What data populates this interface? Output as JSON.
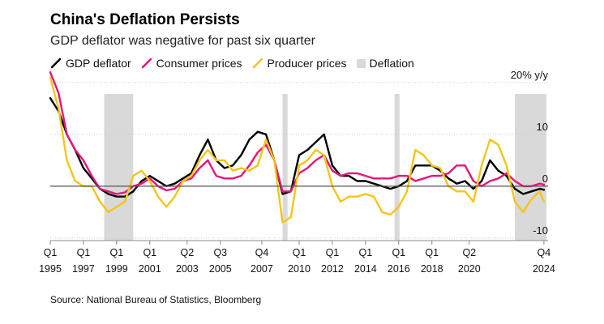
{
  "title": "China's Deflation Persists",
  "subtitle": "GDP deflator was negative for past six quarter",
  "source": "Source: National Bureau of Statistics, Bloomberg",
  "legend": [
    {
      "label": "GDP deflator",
      "color": "#000000",
      "kind": "line"
    },
    {
      "label": "Consumer prices",
      "color": "#e5157a",
      "kind": "line"
    },
    {
      "label": "Producer prices",
      "color": "#f5c518",
      "kind": "line"
    },
    {
      "label": "Deflation",
      "color": "#d9d9d9",
      "kind": "box"
    }
  ],
  "chart_data": {
    "type": "line",
    "x_unit": "year",
    "xlim": [
      1995,
      2025
    ],
    "ylim": [
      -10.5,
      20
    ],
    "y_unit_label": "20% y/y",
    "yticks": [
      {
        "value": 20,
        "label": "20% y/y"
      },
      {
        "value": 10,
        "label": "10"
      },
      {
        "value": 0,
        "label": "0"
      },
      {
        "value": -10,
        "label": "-10"
      }
    ],
    "xticks": [
      {
        "value": 1995,
        "q": "Q1",
        "year": "1995"
      },
      {
        "value": 1997,
        "q": "Q1",
        "year": "1997"
      },
      {
        "value": 1999,
        "q": "Q1",
        "year": "1999"
      },
      {
        "value": 2001,
        "q": "Q1",
        "year": "2001"
      },
      {
        "value": 2003.25,
        "q": "Q2",
        "year": "2003"
      },
      {
        "value": 2005.25,
        "q": "Q3",
        "year": "2005"
      },
      {
        "value": 2007.75,
        "q": "Q4",
        "year": "2007"
      },
      {
        "value": 2010,
        "q": "Q1",
        "year": "2010"
      },
      {
        "value": 2012,
        "q": "Q1",
        "year": "2012"
      },
      {
        "value": 2014,
        "q": "Q1",
        "year": "2014"
      },
      {
        "value": 2016,
        "q": "Q1",
        "year": "2016"
      },
      {
        "value": 2018,
        "q": "Q1",
        "year": "2018"
      },
      {
        "value": 2020.25,
        "q": "Q2",
        "year": "2020"
      },
      {
        "value": 2024.75,
        "q": "Q4",
        "year": "2024"
      }
    ],
    "deflation_periods": [
      [
        1998.25,
        2000.0
      ],
      [
        2009.0,
        2009.3
      ],
      [
        2015.75,
        2016.05
      ],
      [
        2023.0,
        2024.9
      ]
    ],
    "grid": true,
    "series": [
      {
        "name": "GDP deflator",
        "color": "#000000",
        "points": [
          [
            1995,
            17
          ],
          [
            1995.5,
            14.5
          ],
          [
            1996,
            10
          ],
          [
            1996.5,
            7
          ],
          [
            1997,
            3.5
          ],
          [
            1997.5,
            1.5
          ],
          [
            1998,
            -0.5
          ],
          [
            1998.5,
            -1.5
          ],
          [
            1999,
            -2
          ],
          [
            1999.5,
            -2
          ],
          [
            2000,
            -1
          ],
          [
            2000.5,
            1
          ],
          [
            2001,
            2
          ],
          [
            2001.5,
            1
          ],
          [
            2002,
            0
          ],
          [
            2002.5,
            0.5
          ],
          [
            2003,
            1.5
          ],
          [
            2003.5,
            2.5
          ],
          [
            2004,
            6
          ],
          [
            2004.5,
            9
          ],
          [
            2005,
            5
          ],
          [
            2005.5,
            3.5
          ],
          [
            2006,
            4
          ],
          [
            2006.5,
            6
          ],
          [
            2007,
            9
          ],
          [
            2007.5,
            10.5
          ],
          [
            2008,
            10
          ],
          [
            2008.5,
            5
          ],
          [
            2009,
            -1.5
          ],
          [
            2009.5,
            -1
          ],
          [
            2010,
            6
          ],
          [
            2010.5,
            7
          ],
          [
            2011,
            8.5
          ],
          [
            2011.5,
            10
          ],
          [
            2012,
            4
          ],
          [
            2012.5,
            2
          ],
          [
            2013,
            2
          ],
          [
            2013.5,
            1
          ],
          [
            2014,
            1
          ],
          [
            2014.5,
            0.5
          ],
          [
            2015,
            0
          ],
          [
            2015.5,
            -0.5
          ],
          [
            2016,
            0
          ],
          [
            2016.5,
            1
          ],
          [
            2017,
            4
          ],
          [
            2017.5,
            4
          ],
          [
            2018,
            4
          ],
          [
            2018.5,
            3
          ],
          [
            2019,
            1.5
          ],
          [
            2019.5,
            0.5
          ],
          [
            2020,
            1
          ],
          [
            2020.5,
            -0.5
          ],
          [
            2021,
            1
          ],
          [
            2021.5,
            5
          ],
          [
            2022,
            3
          ],
          [
            2022.5,
            2
          ],
          [
            2023,
            -0.5
          ],
          [
            2023.5,
            -1.5
          ],
          [
            2024,
            -1
          ],
          [
            2024.5,
            -0.5
          ],
          [
            2024.75,
            -0.7
          ]
        ]
      },
      {
        "name": "Consumer prices",
        "color": "#e5157a",
        "points": [
          [
            1995,
            22
          ],
          [
            1995.5,
            18
          ],
          [
            1996,
            10
          ],
          [
            1996.5,
            7
          ],
          [
            1997,
            5
          ],
          [
            1997.5,
            2
          ],
          [
            1998,
            -0.5
          ],
          [
            1998.5,
            -1
          ],
          [
            1999,
            -1.5
          ],
          [
            1999.5,
            -1.2
          ],
          [
            2000,
            0
          ],
          [
            2000.5,
            0.5
          ],
          [
            2001,
            1.5
          ],
          [
            2001.5,
            0
          ],
          [
            2002,
            -0.8
          ],
          [
            2002.5,
            -0.5
          ],
          [
            2003,
            1
          ],
          [
            2003.5,
            1.5
          ],
          [
            2004,
            3.5
          ],
          [
            2004.5,
            5
          ],
          [
            2005,
            2
          ],
          [
            2005.5,
            1.5
          ],
          [
            2006,
            1.5
          ],
          [
            2006.5,
            2
          ],
          [
            2007,
            4
          ],
          [
            2007.5,
            6.5
          ],
          [
            2008,
            8
          ],
          [
            2008.5,
            5
          ],
          [
            2009,
            -1
          ],
          [
            2009.5,
            -1
          ],
          [
            2010,
            2.5
          ],
          [
            2010.5,
            3.5
          ],
          [
            2011,
            5
          ],
          [
            2011.5,
            6
          ],
          [
            2012,
            3
          ],
          [
            2012.5,
            2
          ],
          [
            2013,
            2.5
          ],
          [
            2013.5,
            2.5
          ],
          [
            2014,
            2
          ],
          [
            2014.5,
            1.5
          ],
          [
            2015,
            1.5
          ],
          [
            2015.5,
            1.5
          ],
          [
            2016,
            2
          ],
          [
            2016.5,
            2
          ],
          [
            2017,
            1
          ],
          [
            2017.5,
            1.5
          ],
          [
            2018,
            2
          ],
          [
            2018.5,
            2
          ],
          [
            2019,
            2.5
          ],
          [
            2019.5,
            4
          ],
          [
            2020,
            4
          ],
          [
            2020.5,
            1
          ],
          [
            2021,
            0
          ],
          [
            2021.5,
            1
          ],
          [
            2022,
            1.5
          ],
          [
            2022.5,
            2.5
          ],
          [
            2023,
            1
          ],
          [
            2023.5,
            0
          ],
          [
            2024,
            0
          ],
          [
            2024.5,
            0.5
          ],
          [
            2024.75,
            0.3
          ]
        ]
      },
      {
        "name": "Producer prices",
        "color": "#f5c518",
        "points": [
          [
            1995,
            21
          ],
          [
            1995.5,
            15
          ],
          [
            1996,
            5
          ],
          [
            1996.5,
            1
          ],
          [
            1997,
            0
          ],
          [
            1997.5,
            0
          ],
          [
            1998,
            -3
          ],
          [
            1998.5,
            -5
          ],
          [
            1999,
            -4
          ],
          [
            1999.5,
            -3
          ],
          [
            2000,
            2
          ],
          [
            2000.5,
            3
          ],
          [
            2001,
            1
          ],
          [
            2001.5,
            -2
          ],
          [
            2002,
            -4
          ],
          [
            2002.5,
            -2
          ],
          [
            2003,
            1
          ],
          [
            2003.5,
            2
          ],
          [
            2004,
            5
          ],
          [
            2004.5,
            7
          ],
          [
            2005,
            5
          ],
          [
            2005.5,
            5
          ],
          [
            2006,
            3
          ],
          [
            2006.5,
            3.5
          ],
          [
            2007,
            3
          ],
          [
            2007.5,
            4
          ],
          [
            2008,
            9
          ],
          [
            2008.5,
            5
          ],
          [
            2009,
            -7
          ],
          [
            2009.5,
            -6
          ],
          [
            2010,
            4
          ],
          [
            2010.5,
            5
          ],
          [
            2011,
            7
          ],
          [
            2011.5,
            6
          ],
          [
            2012,
            0
          ],
          [
            2012.5,
            -3
          ],
          [
            2013,
            -2
          ],
          [
            2013.5,
            -2
          ],
          [
            2014,
            -1.5
          ],
          [
            2014.5,
            -2
          ],
          [
            2015,
            -5
          ],
          [
            2015.5,
            -5.5
          ],
          [
            2016,
            -4
          ],
          [
            2016.5,
            -1
          ],
          [
            2017,
            7
          ],
          [
            2017.5,
            6
          ],
          [
            2018,
            4
          ],
          [
            2018.5,
            3.5
          ],
          [
            2019,
            0
          ],
          [
            2019.5,
            -1
          ],
          [
            2020,
            -1
          ],
          [
            2020.5,
            -3
          ],
          [
            2021,
            4
          ],
          [
            2021.5,
            9
          ],
          [
            2022,
            8
          ],
          [
            2022.5,
            4
          ],
          [
            2023,
            -3
          ],
          [
            2023.5,
            -5
          ],
          [
            2024,
            -2.5
          ],
          [
            2024.5,
            -1
          ],
          [
            2024.75,
            -3
          ]
        ]
      }
    ]
  }
}
